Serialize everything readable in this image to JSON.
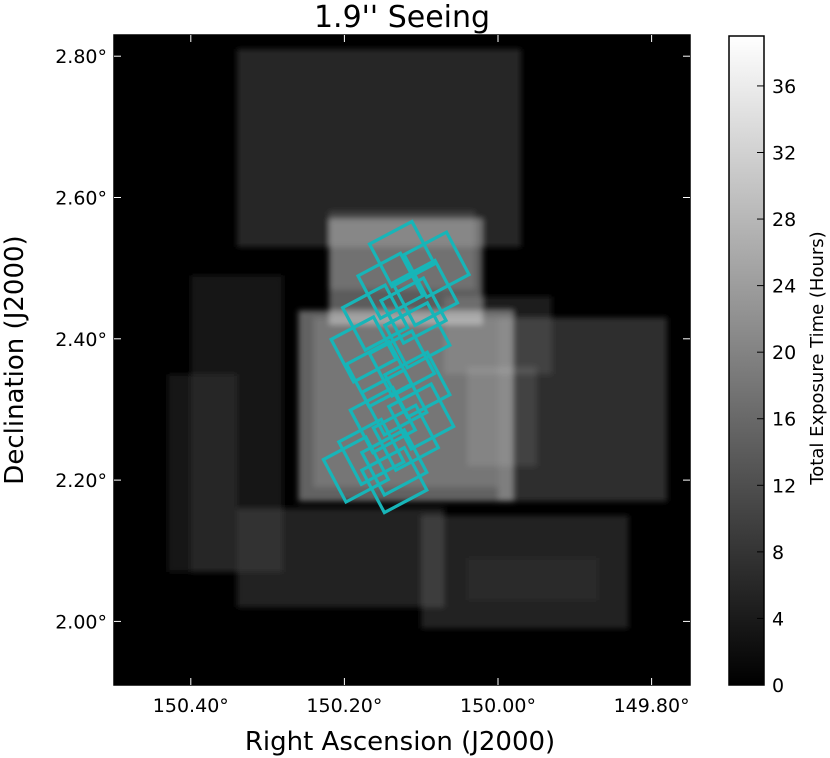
{
  "chart_data": {
    "type": "heatmap",
    "title": "1.9'' Seeing",
    "xlabel": "Right Ascension (J2000)",
    "ylabel": "Declination (J2000)",
    "colorbar_label": "Total Exposure Time (Hours)",
    "colormap": "gray",
    "overlay_color": "#17b5b8",
    "xlim": [
      150.5,
      149.75
    ],
    "ylim": [
      1.91,
      2.83
    ],
    "clim": [
      0,
      39
    ],
    "x_ticks": [
      {
        "value": 150.4,
        "label": "150.40°"
      },
      {
        "value": 150.2,
        "label": "150.20°"
      },
      {
        "value": 150.0,
        "label": "150.00°"
      },
      {
        "value": 149.8,
        "label": "149.80°"
      }
    ],
    "y_ticks": [
      {
        "value": 2.8,
        "label": "2.80°"
      },
      {
        "value": 2.6,
        "label": "2.60°"
      },
      {
        "value": 2.4,
        "label": "2.40°"
      },
      {
        "value": 2.2,
        "label": "2.20°"
      },
      {
        "value": 2.0,
        "label": "2.00°"
      }
    ],
    "colorbar_ticks": [
      {
        "value": 0,
        "label": "0"
      },
      {
        "value": 4,
        "label": "4"
      },
      {
        "value": 8,
        "label": "8"
      },
      {
        "value": 12,
        "label": "12"
      },
      {
        "value": 16,
        "label": "16"
      },
      {
        "value": 20,
        "label": "20"
      },
      {
        "value": 24,
        "label": "24"
      },
      {
        "value": 28,
        "label": "28"
      },
      {
        "value": 32,
        "label": "32"
      },
      {
        "value": 36,
        "label": "36"
      }
    ],
    "exposure_regions": [
      {
        "ra": [
          150.34,
          149.97
        ],
        "dec": [
          2.53,
          2.81
        ],
        "hours": 6
      },
      {
        "ra": [
          150.4,
          150.28
        ],
        "dec": [
          2.07,
          2.49
        ],
        "hours": 3
      },
      {
        "ra": [
          150.43,
          150.34
        ],
        "dec": [
          2.07,
          2.35
        ],
        "hours": 3
      },
      {
        "ra": [
          150.34,
          150.07
        ],
        "dec": [
          2.02,
          2.16
        ],
        "hours": 5
      },
      {
        "ra": [
          150.1,
          149.83
        ],
        "dec": [
          1.99,
          2.15
        ],
        "hours": 5
      },
      {
        "ra": [
          150.07,
          149.93
        ],
        "dec": [
          2.35,
          2.46
        ],
        "hours": 4
      },
      {
        "ra": [
          150.0,
          149.78
        ],
        "dec": [
          2.17,
          2.43
        ],
        "hours": 7
      },
      {
        "ra": [
          150.04,
          149.87
        ],
        "dec": [
          2.03,
          2.09
        ],
        "hours": 2
      },
      {
        "ra": [
          150.22,
          150.03
        ],
        "dec": [
          2.47,
          2.58
        ],
        "hours": 5
      },
      {
        "ra": [
          150.04,
          149.95
        ],
        "dec": [
          2.22,
          2.36
        ],
        "hours": 4
      },
      {
        "ra": [
          150.22,
          150.02
        ],
        "dec": [
          2.42,
          2.57
        ],
        "hours": 14
      },
      {
        "ra": [
          150.26,
          149.98
        ],
        "dec": [
          2.17,
          2.44
        ],
        "hours": 15
      },
      {
        "ra": [
          150.24,
          150.0
        ],
        "dec": [
          2.19,
          2.43
        ],
        "hours": 5
      }
    ],
    "pointings": [
      {
        "ra": 150.125,
        "dec": 2.52
      },
      {
        "ra": 150.08,
        "dec": 2.505
      },
      {
        "ra": 150.14,
        "dec": 2.475
      },
      {
        "ra": 150.095,
        "dec": 2.465
      },
      {
        "ra": 150.11,
        "dec": 2.44
      },
      {
        "ra": 150.16,
        "dec": 2.43
      },
      {
        "ra": 150.105,
        "dec": 2.405
      },
      {
        "ra": 150.175,
        "dec": 2.385
      },
      {
        "ra": 150.125,
        "dec": 2.365
      },
      {
        "ra": 150.155,
        "dec": 2.35
      },
      {
        "ra": 150.105,
        "dec": 2.335
      },
      {
        "ra": 150.135,
        "dec": 2.31
      },
      {
        "ra": 150.1,
        "dec": 2.29
      },
      {
        "ra": 150.15,
        "dec": 2.285
      },
      {
        "ra": 150.12,
        "dec": 2.26
      },
      {
        "ra": 150.165,
        "dec": 2.24
      },
      {
        "ra": 150.135,
        "dec": 2.225
      },
      {
        "ra": 150.185,
        "dec": 2.215
      },
      {
        "ra": 150.135,
        "dec": 2.2
      }
    ],
    "pointing_size_deg": 0.068,
    "pointing_angle_deg": -28
  }
}
